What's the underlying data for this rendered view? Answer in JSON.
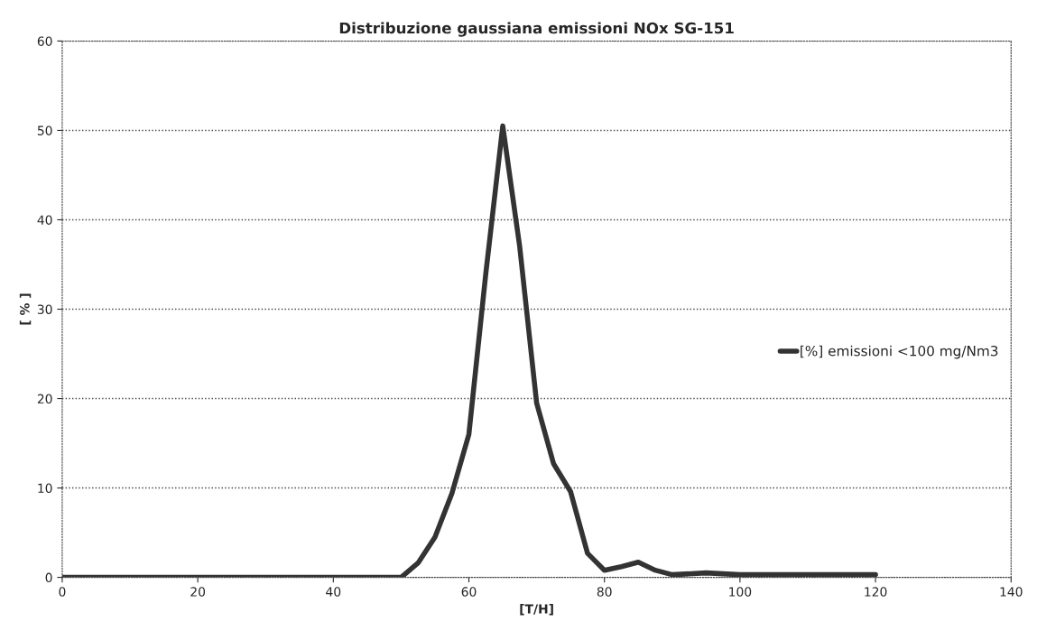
{
  "chart_data": {
    "type": "line",
    "title": "Distribuzione gaussiana emissioni NOx SG-151",
    "xlabel": "[T/H]",
    "ylabel": "[ % ]",
    "x": [
      0,
      5,
      10,
      15,
      20,
      25,
      30,
      35,
      40,
      45,
      50,
      52.5,
      55,
      57.5,
      60,
      62.5,
      65,
      67.5,
      70,
      72.5,
      75,
      77.5,
      80,
      82.5,
      85,
      87.5,
      90,
      95,
      100,
      105,
      110,
      115,
      120
    ],
    "series": [
      {
        "name": "[%] emissioni <100 mg/Nm3",
        "color": "#333333",
        "values": [
          0,
          0,
          0,
          0,
          0,
          0,
          0,
          0,
          0,
          0,
          0,
          1.6,
          4.5,
          9.4,
          16,
          34,
          50.5,
          37,
          19.5,
          12.7,
          9.6,
          2.7,
          0.8,
          1.2,
          1.7,
          0.8,
          0.3,
          0.5,
          0.3,
          0.3,
          0.3,
          0.3,
          0.3
        ]
      }
    ],
    "xlim": [
      0,
      140
    ],
    "xticks": [
      0,
      20,
      40,
      60,
      80,
      100,
      120,
      140
    ],
    "ylim": [
      0,
      60
    ],
    "yticks": [
      0,
      10,
      20,
      30,
      40,
      50,
      60
    ],
    "grid": "y",
    "legend": "right",
    "marker": "none",
    "line_style": "solid"
  }
}
